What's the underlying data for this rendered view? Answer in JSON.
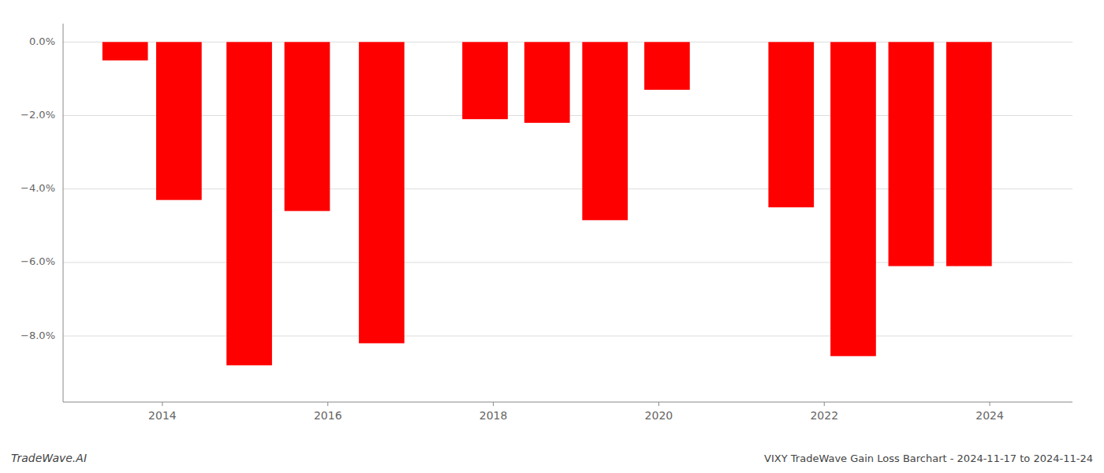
{
  "chart_data": {
    "type": "bar",
    "x": [
      2013.55,
      2014.2,
      2015.05,
      2015.75,
      2016.65,
      2017.9,
      2018.65,
      2019.35,
      2020.1,
      2021.6,
      2022.35,
      2023.05,
      2023.75
    ],
    "values": [
      -0.5,
      -4.3,
      -8.8,
      -4.6,
      -8.2,
      -2.1,
      -2.2,
      -4.85,
      -1.3,
      -4.5,
      -8.55,
      -6.1,
      -6.1
    ],
    "color": "#ff0000",
    "ylim": [
      -9.8,
      0.5
    ],
    "yticks": [
      {
        "value": 0.0,
        "label": "0.0%"
      },
      {
        "value": -2.0,
        "label": "−2.0%"
      },
      {
        "value": -4.0,
        "label": "−4.0%"
      },
      {
        "value": -6.0,
        "label": "−6.0%"
      },
      {
        "value": -8.0,
        "label": "−8.0%"
      }
    ],
    "xlim": [
      2012.8,
      2025.0
    ],
    "xticks": [
      2014,
      2016,
      2018,
      2020,
      2022,
      2024
    ],
    "grid": true,
    "annotations": [
      "TradeWave.AI",
      "VIXY TradeWave Gain Loss Barchart - 2024-11-17 to 2024-11-24"
    ]
  }
}
